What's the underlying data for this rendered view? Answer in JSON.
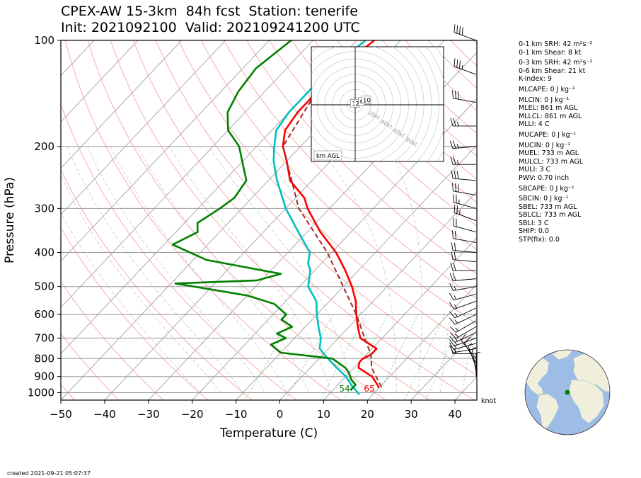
{
  "header": {
    "line1": "CPEX-AW 15-3km  84h fcst  Station: tenerife",
    "line2": "Init: 2021092100  Valid: 202109241200 UTC"
  },
  "footer": {
    "created": "created 2021-09-21 05:07:37"
  },
  "indices": [
    "0-1 km SRH: 42 m²s⁻²",
    "0-1 km Shear: 8 kt",
    "0-3 km SRH: 42 m²s⁻²",
    "0-6 km Shear: 21 kt",
    "K-index: 9",
    "MLCAPE: 0 J kg⁻¹",
    "MLCIN: 0 J kg⁻¹",
    "MLEL: 861 m AGL",
    "MLLCL: 861 m AGL",
    "MLLI: 4 C",
    "MUCAPE: 0 J kg⁻¹",
    "MUCIN: 0 J kg⁻¹",
    "MUEL: 733 m AGL",
    "MULCL: 733 m AGL",
    "MULI: 3 C",
    "PWV: 0.70 inch",
    "SBCAPE: 0 J kg⁻¹",
    "SBCIN: 0 J kg⁻¹",
    "SBEL: 733 m AGL",
    "SBLCL: 733 m AGL",
    "SBLI: 3 C",
    "SHIP: 0.0",
    "STP(fix): 0.0"
  ],
  "chart_data": [
    {
      "type": "line",
      "title": "",
      "xlabel": "Temperature (C)",
      "ylabel": "Pressure (hPa)",
      "xlim": [
        -50,
        45
      ],
      "ylim": [
        1050,
        100
      ],
      "y_scale": "log",
      "grid": true,
      "x_ticks": [
        -50,
        -40,
        -30,
        -20,
        -10,
        0,
        10,
        20,
        30,
        40
      ],
      "y_ticks": [
        100,
        200,
        300,
        400,
        500,
        600,
        700,
        800,
        900,
        1000
      ],
      "wind_unit_label": "knot",
      "surface_labels": {
        "dewpoint": "54",
        "temperature": "65"
      },
      "series": [
        {
          "color": "#ff0000",
          "points": [
            [
              100,
              -56
            ],
            [
              120,
              -58
            ],
            [
              140,
              -58
            ],
            [
              160,
              -58
            ],
            [
              180,
              -57
            ],
            [
              200,
              -54
            ],
            [
              220,
              -50
            ],
            [
              250,
              -45
            ],
            [
              280,
              -38
            ],
            [
              300,
              -35
            ],
            [
              350,
              -27
            ],
            [
              400,
              -19
            ],
            [
              450,
              -13
            ],
            [
              500,
              -8
            ],
            [
              550,
              -4
            ],
            [
              600,
              -1
            ],
            [
              650,
              2
            ],
            [
              700,
              5
            ],
            [
              750,
              11
            ],
            [
              780,
              11
            ],
            [
              800,
              10
            ],
            [
              820,
              10
            ],
            [
              850,
              11
            ],
            [
              880,
              14
            ],
            [
              900,
              16
            ],
            [
              950,
              19
            ],
            [
              970,
              20
            ]
          ]
        },
        {
          "color": "#00c0c0",
          "points": [
            [
              100,
              -58
            ],
            [
              120,
              -60
            ],
            [
              140,
              -60
            ],
            [
              160,
              -60
            ],
            [
              180,
              -59
            ],
            [
              200,
              -56
            ],
            [
              220,
              -53
            ],
            [
              250,
              -48
            ],
            [
              280,
              -43
            ],
            [
              300,
              -40
            ],
            [
              350,
              -32
            ],
            [
              400,
              -25
            ],
            [
              430,
              -23
            ],
            [
              450,
              -21
            ],
            [
              500,
              -18
            ],
            [
              550,
              -13
            ],
            [
              600,
              -10
            ],
            [
              650,
              -7
            ],
            [
              700,
              -4
            ],
            [
              750,
              -2
            ],
            [
              800,
              2
            ],
            [
              850,
              6
            ],
            [
              900,
              10
            ],
            [
              950,
              13
            ],
            [
              1013,
              17
            ]
          ]
        },
        {
          "color": "#008000",
          "points": [
            [
              100,
              -75
            ],
            [
              120,
              -77
            ],
            [
              140,
              -76
            ],
            [
              160,
              -74
            ],
            [
              180,
              -70
            ],
            [
              200,
              -64
            ],
            [
              250,
              -55
            ],
            [
              280,
              -54
            ],
            [
              300,
              -55
            ],
            [
              330,
              -57
            ],
            [
              350,
              -55
            ],
            [
              380,
              -58
            ],
            [
              420,
              -47
            ],
            [
              460,
              -27
            ],
            [
              480,
              -31
            ],
            [
              490,
              -49
            ],
            [
              530,
              -30
            ],
            [
              560,
              -22
            ],
            [
              600,
              -17
            ],
            [
              620,
              -17
            ],
            [
              650,
              -13
            ],
            [
              680,
              -15
            ],
            [
              700,
              -12
            ],
            [
              730,
              -14
            ],
            [
              770,
              -10
            ],
            [
              800,
              3
            ],
            [
              850,
              8
            ],
            [
              880,
              10
            ],
            [
              920,
              12
            ],
            [
              950,
              14
            ],
            [
              985,
              14
            ]
          ]
        },
        {
          "color": "#a52a2a",
          "dashed": true,
          "points": [
            [
              130,
              -59
            ],
            [
              200,
              -54
            ],
            [
              300,
              -37
            ],
            [
              400,
              -21
            ],
            [
              500,
              -10
            ],
            [
              600,
              -1
            ],
            [
              700,
              6
            ],
            [
              780,
              11
            ],
            [
              850,
              14
            ],
            [
              920,
              18
            ],
            [
              975,
              21
            ]
          ]
        }
      ],
      "hodograph": {
        "label": "km AGL",
        "ring_labels": [
          "20kt",
          "40kt",
          "60kt",
          "80kt"
        ],
        "trace": [
          [
            4,
            -2
          ],
          [
            2,
            -3
          ],
          [
            -2,
            0
          ],
          [
            0,
            1
          ],
          [
            6,
            2
          ],
          [
            10,
            3
          ],
          [
            14,
            4
          ]
        ],
        "height_labels": [
          {
            "text": "1",
            "u": -1.5,
            "v": 1.5
          },
          {
            "text": "2",
            "u": 3,
            "v": 1.5
          },
          {
            "text": "6",
            "u": 9,
            "v": 4
          },
          {
            "text": "10",
            "u": 13,
            "v": 6
          }
        ]
      },
      "wind_barbs": [
        {
          "p": 100,
          "dir": 290,
          "spd": 40
        },
        {
          "p": 125,
          "dir": 290,
          "spd": 35
        },
        {
          "p": 150,
          "dir": 280,
          "spd": 30
        },
        {
          "p": 175,
          "dir": 270,
          "spd": 25
        },
        {
          "p": 200,
          "dir": 265,
          "spd": 25
        },
        {
          "p": 225,
          "dir": 270,
          "spd": 25
        },
        {
          "p": 250,
          "dir": 275,
          "spd": 30
        },
        {
          "p": 275,
          "dir": 280,
          "spd": 30
        },
        {
          "p": 300,
          "dir": 285,
          "spd": 25
        },
        {
          "p": 325,
          "dir": 290,
          "spd": 25
        },
        {
          "p": 350,
          "dir": 285,
          "spd": 20
        },
        {
          "p": 375,
          "dir": 280,
          "spd": 20
        },
        {
          "p": 400,
          "dir": 275,
          "spd": 20
        },
        {
          "p": 425,
          "dir": 275,
          "spd": 20
        },
        {
          "p": 450,
          "dir": 270,
          "spd": 20
        },
        {
          "p": 475,
          "dir": 265,
          "spd": 20
        },
        {
          "p": 500,
          "dir": 260,
          "spd": 15
        },
        {
          "p": 525,
          "dir": 255,
          "spd": 15
        },
        {
          "p": 550,
          "dir": 250,
          "spd": 15
        },
        {
          "p": 575,
          "dir": 245,
          "spd": 15
        },
        {
          "p": 600,
          "dir": 245,
          "spd": 15
        },
        {
          "p": 625,
          "dir": 240,
          "spd": 15
        },
        {
          "p": 650,
          "dir": 240,
          "spd": 15
        },
        {
          "p": 675,
          "dir": 245,
          "spd": 15
        },
        {
          "p": 700,
          "dir": 250,
          "spd": 15
        },
        {
          "p": 725,
          "dir": 255,
          "spd": 15
        },
        {
          "p": 750,
          "dir": 260,
          "spd": 15
        },
        {
          "p": 775,
          "dir": 270,
          "spd": 15
        },
        {
          "p": 800,
          "dir": 320,
          "spd": 10
        },
        {
          "p": 825,
          "dir": 330,
          "spd": 10
        },
        {
          "p": 850,
          "dir": 340,
          "spd": 5
        },
        {
          "p": 875,
          "dir": 350,
          "spd": 5
        },
        {
          "p": 900,
          "dir": 0,
          "spd": 5
        }
      ]
    }
  ]
}
